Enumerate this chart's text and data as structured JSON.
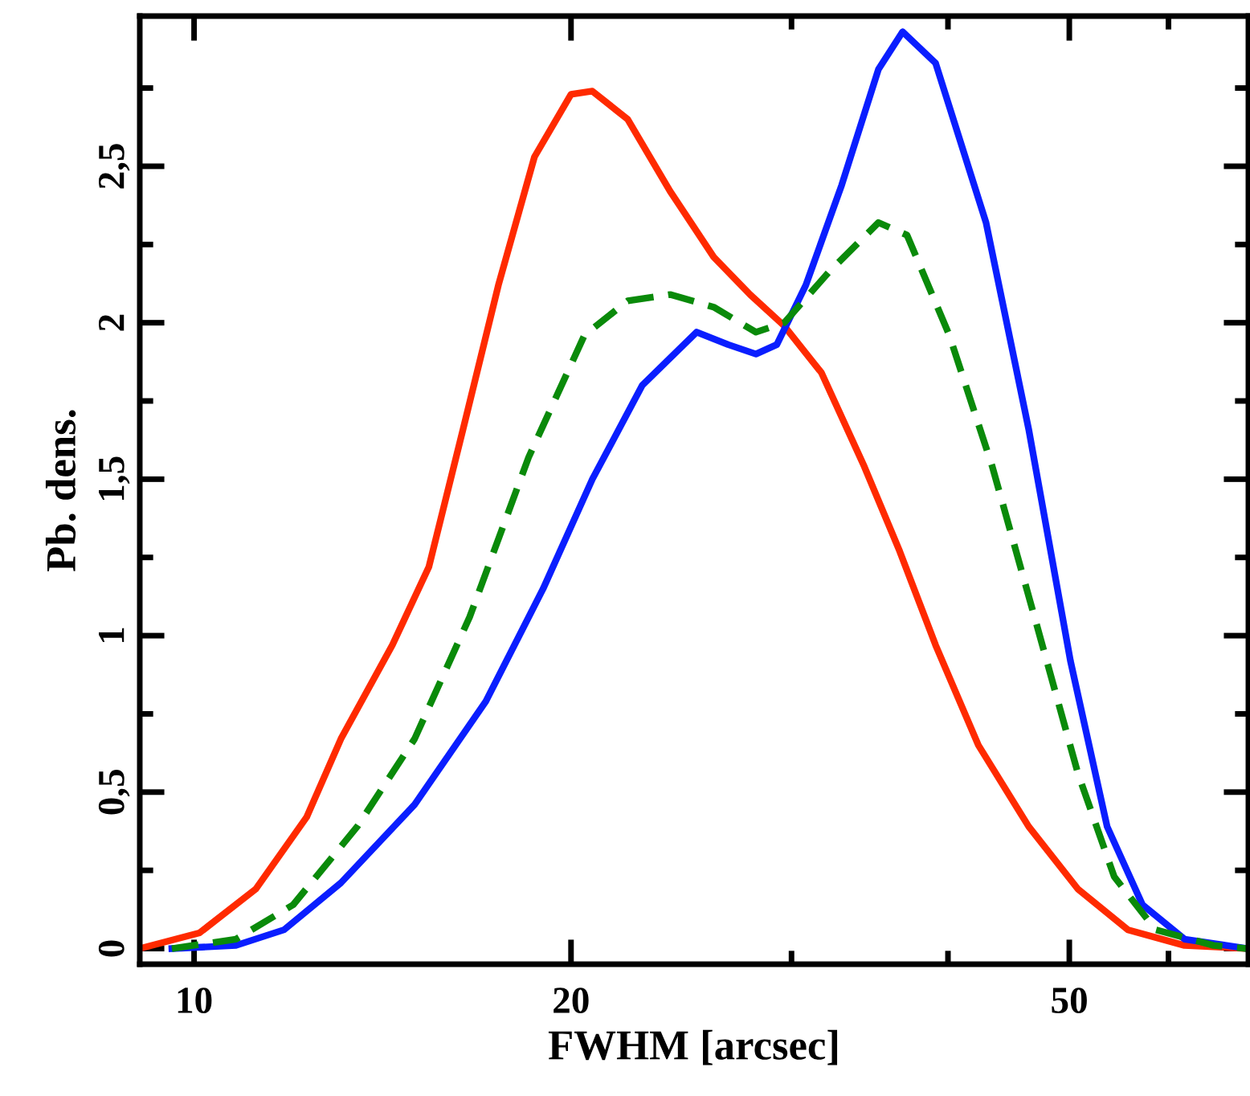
{
  "chart_data": {
    "type": "line",
    "xlabel": "FWHM [arcsec]",
    "ylabel": "Pb. dens.",
    "log": "x",
    "xlim": [
      9.05,
      69.5
    ],
    "ylim": [
      -0.05,
      2.98
    ],
    "xticks": [
      10,
      20,
      {
        "value": 30,
        "label": null
      },
      {
        "value": 40,
        "label": null
      },
      50,
      {
        "value": 60,
        "label": null
      }
    ],
    "yticks": [
      0,
      {
        "value": 0.25,
        "label": null
      },
      {
        "value": 0.5,
        "label": "0,5"
      },
      {
        "value": 0.75,
        "label": null
      },
      1,
      {
        "value": 1.25,
        "label": null
      },
      {
        "value": 1.5,
        "label": "1,5"
      },
      {
        "value": 1.75,
        "label": null
      },
      2,
      {
        "value": 2.25,
        "label": null
      },
      {
        "value": 2.5,
        "label": "2,5"
      },
      {
        "value": 2.75,
        "label": null
      }
    ],
    "grid": false,
    "legend": false,
    "marker": "none",
    "series": [
      {
        "color": "#ff2a00",
        "line_style": "solid",
        "x": [
          9.05,
          10.1,
          11.2,
          12.3,
          13.1,
          14.4,
          15.4,
          16.4,
          17.5,
          18.7,
          20.0,
          20.8,
          22.2,
          24.0,
          26.0,
          27.8,
          29.6,
          31.7,
          34.3,
          36.6,
          39.1,
          42.3,
          46.4,
          50.8,
          55.7,
          61.8,
          69.4
        ],
        "values": [
          0,
          0.05,
          0.19,
          0.42,
          0.67,
          0.97,
          1.22,
          1.66,
          2.12,
          2.53,
          2.73,
          2.74,
          2.65,
          2.42,
          2.21,
          2.09,
          1.99,
          1.84,
          1.54,
          1.27,
          0.97,
          0.65,
          0.39,
          0.19,
          0.06,
          0.01,
          0
        ]
      },
      {
        "color": "#0a1eff",
        "line_style": "solid",
        "x": [
          9.6,
          10.8,
          11.8,
          13.1,
          15.0,
          17.1,
          19.0,
          20.8,
          22.8,
          25.2,
          26.7,
          28.1,
          29.2,
          30.8,
          32.9,
          35.2,
          36.8,
          39.1,
          42.9,
          46.4,
          50.1,
          53.6,
          57.2,
          61.8,
          69.4
        ],
        "values": [
          0,
          0.01,
          0.06,
          0.21,
          0.46,
          0.79,
          1.15,
          1.5,
          1.8,
          1.97,
          1.93,
          1.9,
          1.93,
          2.12,
          2.44,
          2.81,
          2.93,
          2.83,
          2.32,
          1.66,
          0.92,
          0.39,
          0.14,
          0.03,
          0
        ]
      },
      {
        "color": "#0a8a0a",
        "line_style": "dashed",
        "x": [
          9.6,
          10.8,
          12.0,
          13.5,
          15.0,
          16.6,
          18.5,
          20.5,
          22.2,
          24.0,
          26.0,
          28.1,
          29.6,
          32.1,
          35.2,
          37.1,
          40.1,
          43.4,
          46.9,
          50.8,
          54.3,
          58.6,
          65.2,
          69.4
        ],
        "values": [
          0,
          0.03,
          0.14,
          0.39,
          0.67,
          1.06,
          1.57,
          1.96,
          2.07,
          2.09,
          2.05,
          1.97,
          2.0,
          2.16,
          2.32,
          2.28,
          1.96,
          1.54,
          1.06,
          0.56,
          0.23,
          0.06,
          0.01,
          0
        ]
      }
    ]
  }
}
